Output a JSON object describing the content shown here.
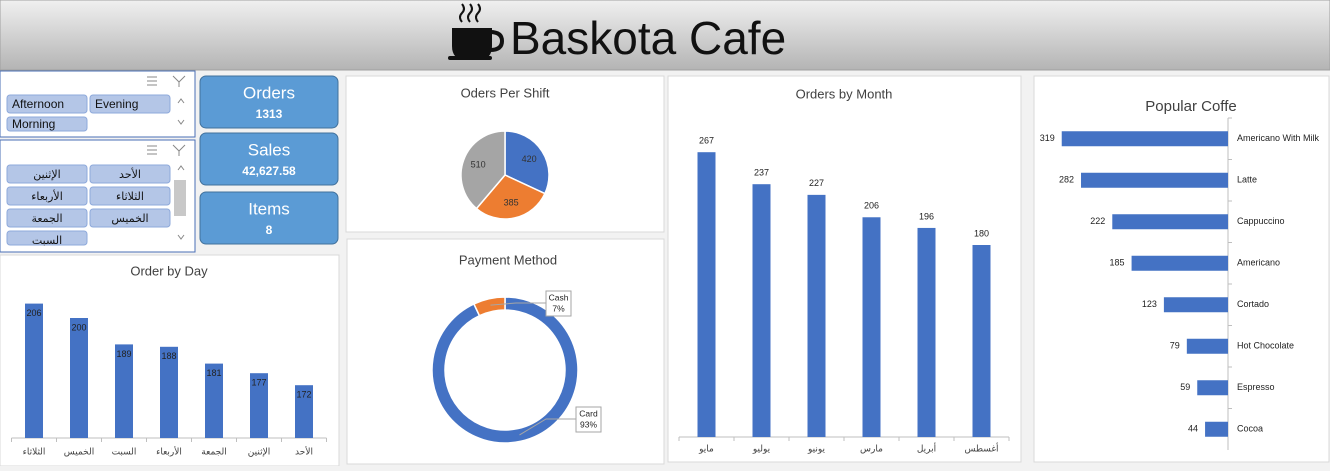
{
  "header": {
    "title": "Baskota Cafe"
  },
  "slicers": [
    {
      "items": [
        "Afternoon",
        "Evening",
        "Morning"
      ]
    },
    {
      "items": [
        "الإثنين",
        "الأحد",
        "الأربعاء",
        "الثلاثاء",
        "الجمعة",
        "الخميس",
        "السبت"
      ]
    }
  ],
  "kpis": [
    {
      "label": "Orders",
      "value": "1313"
    },
    {
      "label": "Sales",
      "value": "42,627.58"
    },
    {
      "label": "Items",
      "value": "8"
    }
  ],
  "chart_data": [
    {
      "type": "bar",
      "title": "Order by Day",
      "categories": [
        "الثلاثاء",
        "الخميس",
        "السبت",
        "الأربعاء",
        "الجمعة",
        "الإثنين",
        "الأحد"
      ],
      "values": [
        206,
        200,
        189,
        188,
        181,
        177,
        172
      ],
      "color": "#4472c4",
      "ylim": [
        150,
        215
      ]
    },
    {
      "type": "pie",
      "title": "Oders Per Shift",
      "values": [
        420,
        385,
        510
      ],
      "colors": [
        "#4472c4",
        "#ed7d31",
        "#a5a5a5"
      ]
    },
    {
      "type": "donut",
      "title": "Payment Method",
      "categories": [
        "Card",
        "Cash"
      ],
      "values": [
        93,
        7
      ],
      "value_labels": [
        "93%",
        "7%"
      ],
      "colors": [
        "#4472c4",
        "#ed7d31"
      ]
    },
    {
      "type": "bar",
      "title": "Orders by Month",
      "categories": [
        "مايو",
        "يوليو",
        "يونيو",
        "مارس",
        "أبريل",
        "أغسطس"
      ],
      "values": [
        267,
        237,
        227,
        206,
        196,
        180
      ],
      "color": "#4472c4",
      "ylim": [
        0,
        300
      ]
    },
    {
      "type": "barh",
      "title": "Popular Coffe",
      "categories": [
        "Americano With Milk",
        "Latte",
        "Cappuccino",
        "Americano",
        "Cortado",
        "Hot Chocolate",
        "Espresso",
        "Cocoa"
      ],
      "values": [
        319,
        282,
        222,
        185,
        123,
        79,
        59,
        44
      ],
      "color": "#4472c4",
      "xlim": [
        0,
        330
      ]
    }
  ]
}
